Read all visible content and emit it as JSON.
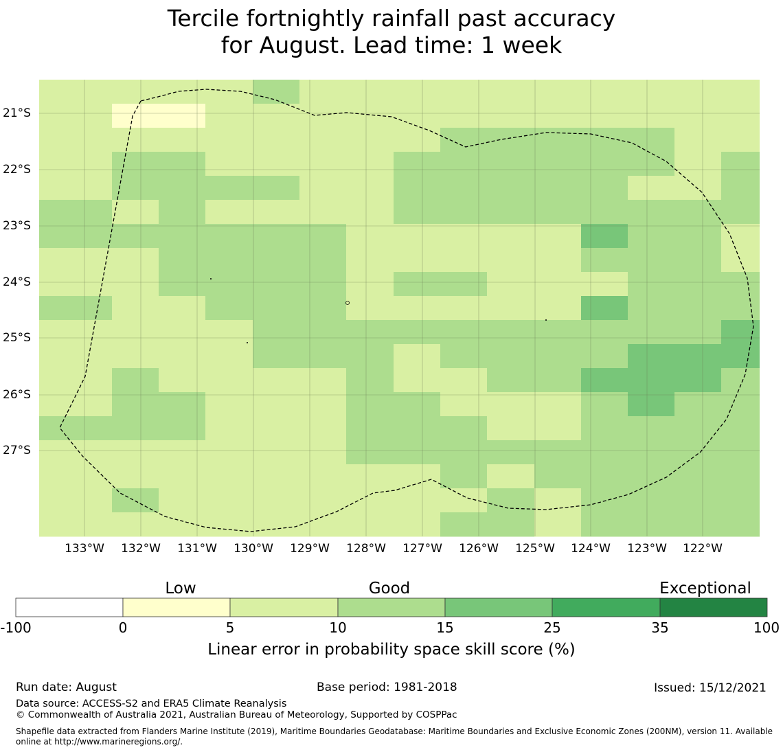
{
  "title": {
    "line1": "Tercile fortnightly rainfall past accuracy",
    "line2": "for August. Lead time: 1 week"
  },
  "map": {
    "lat_labels": [
      "21°S",
      "22°S",
      "23°S",
      "24°S",
      "25°S",
      "26°S",
      "27°S"
    ],
    "lon_labels": [
      "133°W",
      "132°W",
      "131°W",
      "130°W",
      "129°W",
      "128°W",
      "127°W",
      "126°W",
      "125°W",
      "124°W",
      "123°W",
      "122°W"
    ],
    "grid": [
      "222232222222222",
      "211222222222222",
      "222222223333322",
      "233222233333323",
      "233332233333223",
      "323222233333333",
      "333333222224332",
      "223333222223332",
      "223333233222333",
      "322333222224333",
      "222233333333334",
      "222233323333444",
      "232222322334443",
      "233222332223433",
      "333222333223333",
      "222222333333333",
      "222222223233333",
      "232222222323333",
      "222222223323333"
    ]
  },
  "legend": {
    "categories": [
      "Low",
      "Good",
      "Exceptional"
    ],
    "ticks": [
      "-100",
      "0",
      "5",
      "10",
      "15",
      "25",
      "35",
      "100"
    ],
    "colors": [
      "#ffffff",
      "#ffffcc",
      "#d9f0a3",
      "#addd8e",
      "#78c679",
      "#41ab5d",
      "#238443"
    ],
    "label": "Linear error in probability space skill score (%)"
  },
  "footer": {
    "run_date": "Run date: August",
    "base_period": "Base period: 1981-2018",
    "issued": "Issued: 15/12/2021",
    "data_source": "Data source: ACCESS-S2 and ERA5 Climate Reanalysis",
    "copyright": "© Commonwealth of Australia 2021, Australian Bureau of Meteorology, Supported by COSPPac",
    "shapefile_line1": "Shapefile data extracted from Flanders Marine Institute (2019), Maritime Boundaries Geodatabase: Maritime Boundaries and Exclusive Economic Zones (200NM), version 11. Available",
    "shapefile_line2": "online at http://www.marineregions.org/."
  }
}
